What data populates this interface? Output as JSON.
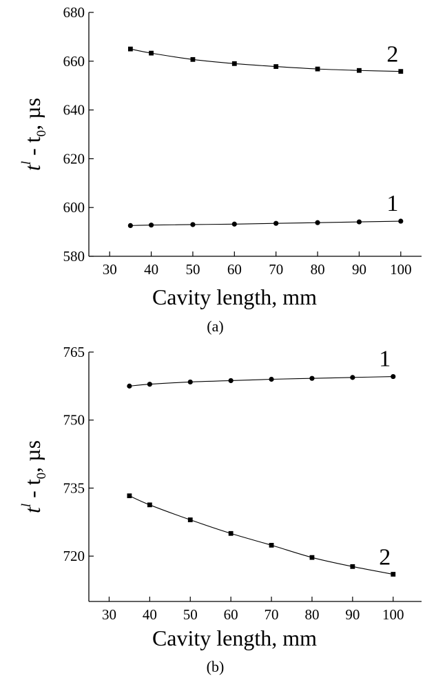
{
  "chart_data": [
    {
      "panel": "(a)",
      "type": "line",
      "xlabel": "Cavity length, mm",
      "ylabel": {
        "t1": "t",
        "sup": "l",
        "mid": " - t",
        "sub": "0",
        "unit": ", µs"
      },
      "xlim": [
        25,
        105
      ],
      "ylim": [
        580,
        680
      ],
      "xticks": [
        30,
        40,
        50,
        60,
        70,
        80,
        90,
        100
      ],
      "yticks": [
        580,
        600,
        620,
        640,
        660,
        680
      ],
      "x": [
        35,
        40,
        50,
        60,
        70,
        80,
        90,
        100
      ],
      "series": [
        {
          "name": "1",
          "marker": "circle",
          "values": [
            592.6,
            592.8,
            593.0,
            593.2,
            593.5,
            593.8,
            594.1,
            594.4
          ]
        },
        {
          "name": "2",
          "marker": "square",
          "values": [
            665.0,
            663.3,
            660.7,
            659.0,
            657.8,
            656.8,
            656.2,
            655.8
          ]
        }
      ]
    },
    {
      "panel": "(b)",
      "type": "line",
      "xlabel": "Cavity length, mm",
      "ylabel": {
        "t1": "t",
        "sup": "l",
        "mid": " - t",
        "sub": "0",
        "unit": ", µs"
      },
      "xlim": [
        25,
        107
      ],
      "ylim": [
        710,
        765
      ],
      "xticks": [
        30,
        40,
        50,
        60,
        70,
        80,
        90,
        100
      ],
      "yticks": [
        720,
        735,
        750,
        765
      ],
      "x": [
        35,
        40,
        50,
        60,
        70,
        80,
        90,
        100
      ],
      "series": [
        {
          "name": "1",
          "marker": "circle",
          "values": [
            757.5,
            757.9,
            758.4,
            758.7,
            759.0,
            759.2,
            759.4,
            759.6
          ]
        },
        {
          "name": "2",
          "marker": "square",
          "values": [
            733.3,
            731.3,
            728.0,
            725.0,
            722.4,
            719.7,
            717.7,
            716.0
          ]
        }
      ]
    }
  ]
}
